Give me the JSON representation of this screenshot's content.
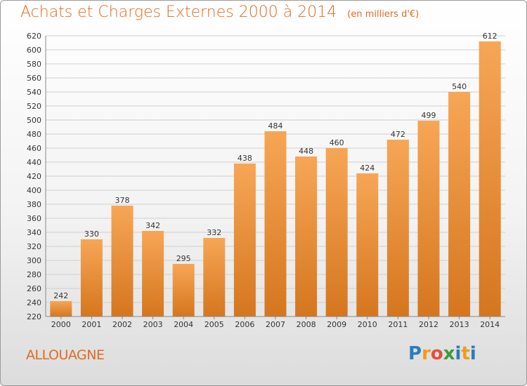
{
  "title": "Achats et Charges Externes 2000 à 2014",
  "subtitle": "(en milliers d'€)",
  "commune": "ALLOUAGNE",
  "logo": {
    "text": "Proxiti",
    "colors": [
      "#2b7bc0",
      "#f39c12",
      "#e74c3c",
      "#3c9a3c",
      "#2b7bc0",
      "#f39c12",
      "#2b7bc0"
    ]
  },
  "colors": {
    "accent": "#e06a20",
    "bar_light": "#f7a656",
    "bar_dark": "#d5761e",
    "grid": "#cfcfcf"
  },
  "chart_data": {
    "type": "bar",
    "title": "Achats et Charges Externes 2000 à 2014",
    "subtitle": "(en milliers d'€)",
    "categories": [
      "2000",
      "2001",
      "2002",
      "2003",
      "2004",
      "2005",
      "2006",
      "2007",
      "2008",
      "2009",
      "2010",
      "2011",
      "2012",
      "2013",
      "2014"
    ],
    "values": [
      242,
      330,
      378,
      342,
      295,
      332,
      438,
      484,
      448,
      460,
      424,
      472,
      499,
      540,
      612
    ],
    "ylim": [
      220,
      620
    ],
    "yticks": [
      220,
      240,
      260,
      280,
      300,
      320,
      340,
      360,
      380,
      400,
      420,
      440,
      460,
      480,
      500,
      520,
      540,
      560,
      580,
      600,
      620
    ],
    "grid": true,
    "xlabel": "",
    "ylabel": ""
  }
}
